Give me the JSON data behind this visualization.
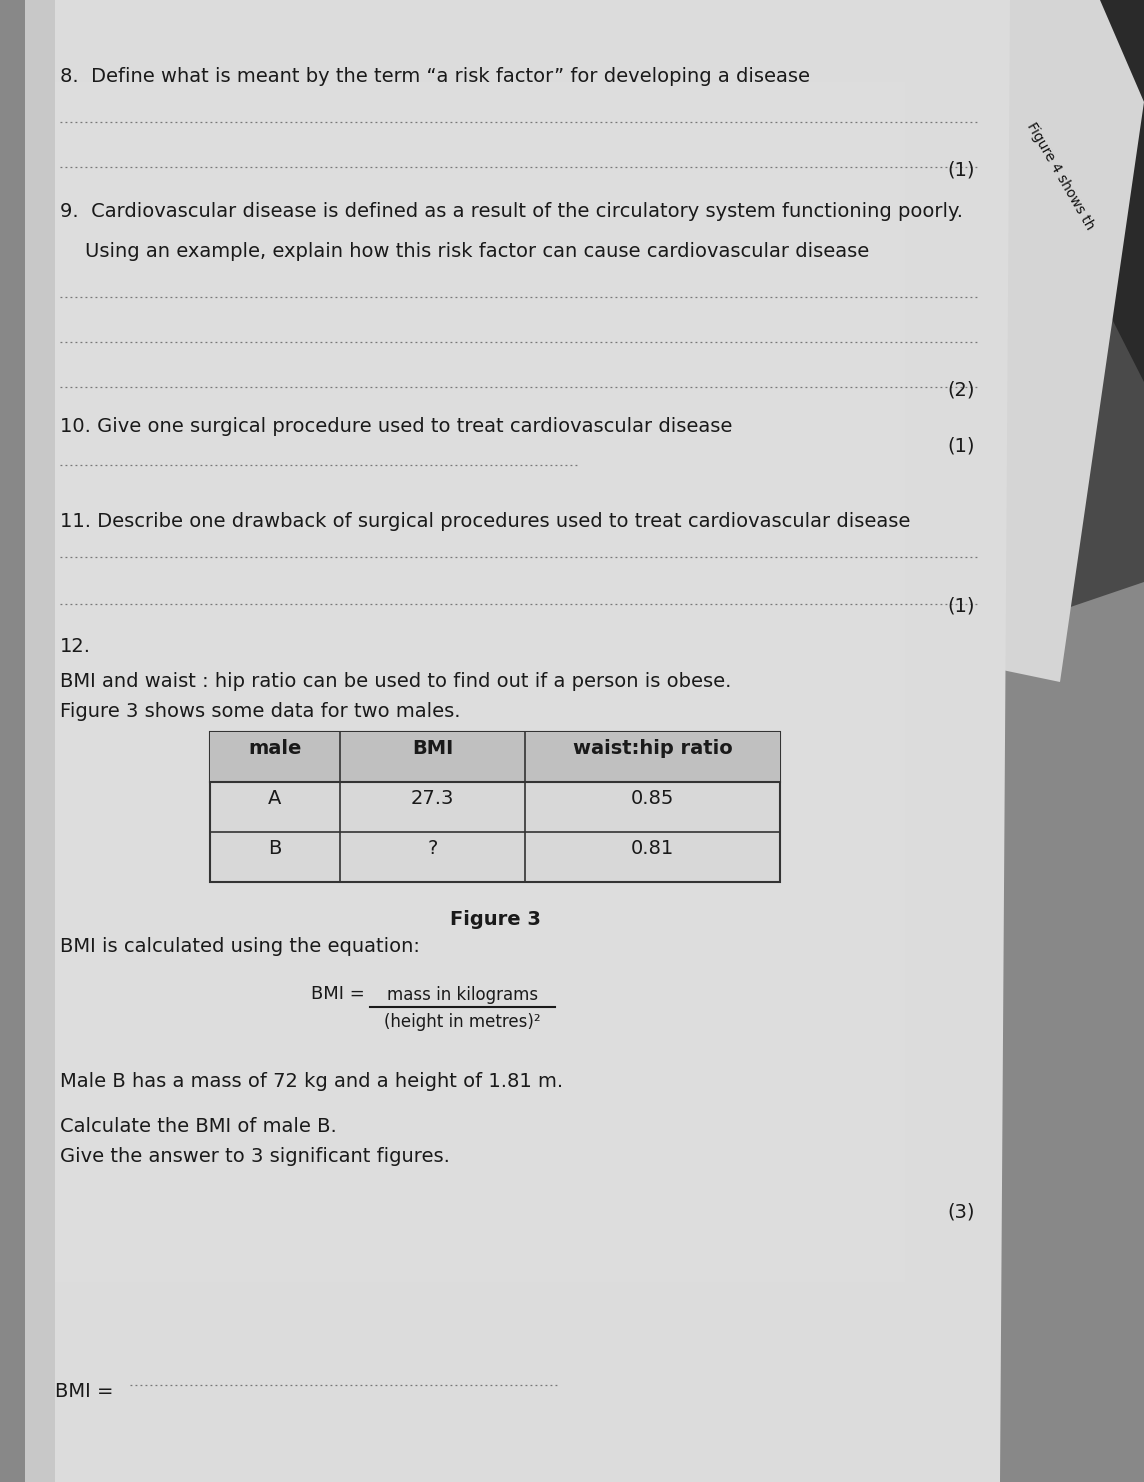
{
  "bg_color_top": "#5a5a5a",
  "bg_color_main": "#b0b0b0",
  "paper_color": "#dcdcdc",
  "paper_color2": "#e8e8e8",
  "text_color": "#1a1a1a",
  "q8_text": "8.  Define what is meant by the term “a risk factor” for developing a disease",
  "q8_mark": "(1)",
  "q9_text1": "9.  Cardiovascular disease is defined as a result of the circulatory system functioning poorly.",
  "q9_text2": "    Using an example, explain how this risk factor can cause cardiovascular disease",
  "q9_mark": "(2)",
  "q10_text": "10. Give one surgical procedure used to treat cardiovascular disease",
  "q10_mark": "(1)",
  "q11_text": "11. Describe one drawback of surgical procedures used to treat cardiovascular disease",
  "q11_mark": "(1)",
  "q12_header": "12.",
  "q12_text1": "BMI and waist : hip ratio can be used to find out if a person is obese.",
  "q12_text2": "Figure 3 shows some data for two males.",
  "table_headers": [
    "male",
    "BMI",
    "waist:hip ratio"
  ],
  "table_row1": [
    "A",
    "27.3",
    "0.85"
  ],
  "table_row2": [
    "B",
    "?",
    "0.81"
  ],
  "figure_caption": "Figure 3",
  "bmi_intro": "BMI is calculated using the equation:",
  "bmi_numerator": "mass in kilograms",
  "bmi_denominator": "(height in metres)²",
  "bmi_prefix": "BMI =",
  "male_b_text": "Male B has a mass of 72 kg and a height of 1.81 m.",
  "calc_text1": "Calculate the BMI of male B.",
  "calc_text2": "Give the answer to 3 significant figures.",
  "calc_mark": "(3)",
  "bmi_answer_label": "BMI = ",
  "figure4_text": "Figure 4 shows th",
  "dot_color": "#666666",
  "font_size_main": 14,
  "font_size_small": 12
}
